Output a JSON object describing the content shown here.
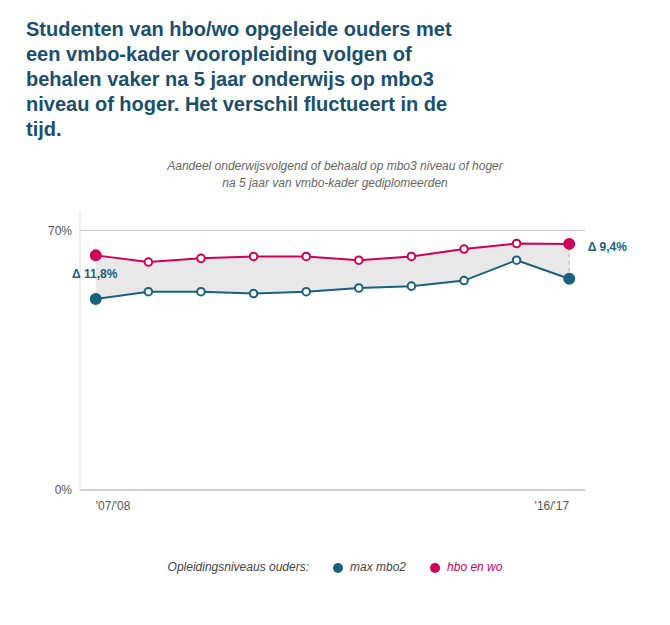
{
  "chart_data": {
    "type": "line",
    "title": "Studenten van hbo/wo opgeleide ouders met\neen vmbo-kader vooropleiding volgen of\nbehalen vaker na 5 jaar onderwijs op mbo3\nniveau of hoger. Het verschil fluctueert in de\ntijd.",
    "subtitle": "Aandeel onderwijsvolgend of behaald op mbo3 niveau of hoger\nna 5 jaar van vmbo-kader gediplomeerden",
    "categories": [
      "'07/'08",
      null,
      null,
      null,
      null,
      null,
      null,
      null,
      null,
      "'16/'17"
    ],
    "series": [
      {
        "name": "max mbo2",
        "color": "#1a6080",
        "marker": "circle",
        "values": [
          51.5,
          53.5,
          53.5,
          53.0,
          53.5,
          54.5,
          55.0,
          56.5,
          62.0,
          57.0
        ]
      },
      {
        "name": "hbo en wo",
        "color": "#ce0058",
        "marker": "circle",
        "values": [
          63.3,
          61.5,
          62.5,
          63.0,
          63.0,
          62.0,
          63.0,
          65.0,
          66.5,
          66.4
        ]
      }
    ],
    "ylim": [
      0,
      75
    ],
    "yticks": [
      {
        "value": 0,
        "label": "0%"
      },
      {
        "value": 70,
        "label": "70%"
      }
    ],
    "grid": true,
    "legend": "bottom",
    "legend_title": "Opleidingsniveaus ouders:",
    "annotations": [
      "Δ 11,8%",
      "Δ 9,4%"
    ]
  }
}
